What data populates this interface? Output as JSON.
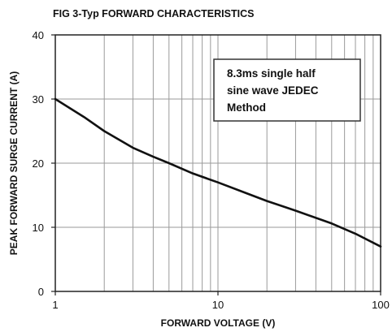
{
  "chart_data": {
    "type": "line",
    "title": "FIG 3-Typ FORWARD CHARACTERISTICS",
    "xlabel": "FORWARD VOLTAGE (V)",
    "ylabel": "PEAK FORWARD SURGE CURRENT (A)",
    "x_scale": "log",
    "xlim": [
      1,
      100
    ],
    "ylim": [
      0,
      40
    ],
    "x_ticks": [
      "1",
      "10",
      "100"
    ],
    "y_ticks": [
      "0",
      "10",
      "20",
      "30",
      "40"
    ],
    "grid": true,
    "annotation": [
      "8.3ms single half",
      "sine wave JEDEC",
      "Method"
    ],
    "annotation_position": "top-right",
    "series": [
      {
        "x": [
          1,
          1.5,
          2,
          3,
          4,
          5,
          7,
          10,
          15,
          20,
          30,
          50,
          70,
          100
        ],
        "y": [
          30,
          27.2,
          25,
          22.4,
          21,
          20,
          18.4,
          17,
          15.3,
          14.1,
          12.6,
          10.6,
          9.0,
          7
        ]
      }
    ],
    "line_color": "#111111"
  }
}
